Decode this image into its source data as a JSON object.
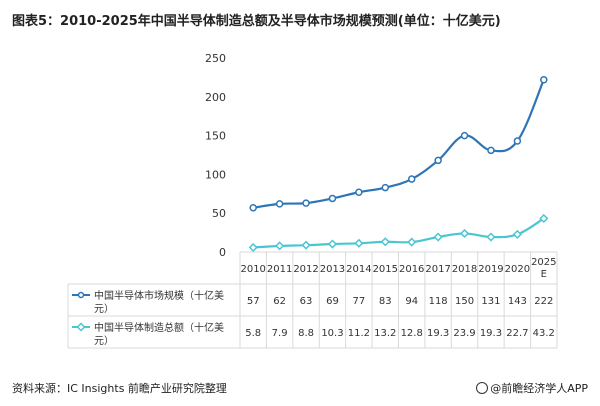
{
  "header": {
    "title": "图表5：2010-2025年中国半导体制造总额及半导体市场规模预测(单位：十亿美元)"
  },
  "footer": {
    "source": "资料来源：IC Insights 前瞻产业研究院整理",
    "credit": "@前瞻经济学人APP"
  },
  "colors": {
    "market": "#2E75B6",
    "manufacturing": "#4BC6D1",
    "grid": "#D9D9D9",
    "axis": "#595959"
  },
  "chart_data": {
    "type": "line",
    "title": "图表5：2010-2025年中国半导体制造总额及半导体市场规模预测(单位：十亿美元)",
    "categories": [
      "2010",
      "2011",
      "2012",
      "2013",
      "2014",
      "2015",
      "2016",
      "2017",
      "2018",
      "2019",
      "2020",
      "2025E"
    ],
    "ylim": [
      0,
      250
    ],
    "yticks": [
      0,
      50,
      100,
      150,
      200,
      250
    ],
    "grid": true,
    "legend": "data-table",
    "series": [
      {
        "name": "中国半导体市场规模（十亿美元）",
        "values": [
          57,
          62,
          63,
          69,
          77,
          83,
          94,
          118,
          150,
          131,
          143,
          222
        ]
      },
      {
        "name": "中国半导体制造总额（十亿美元）",
        "values": [
          5.8,
          7.9,
          8.8,
          10.3,
          11.2,
          13.2,
          12.8,
          19.3,
          23.9,
          19.3,
          22.7,
          43.2
        ]
      }
    ]
  }
}
